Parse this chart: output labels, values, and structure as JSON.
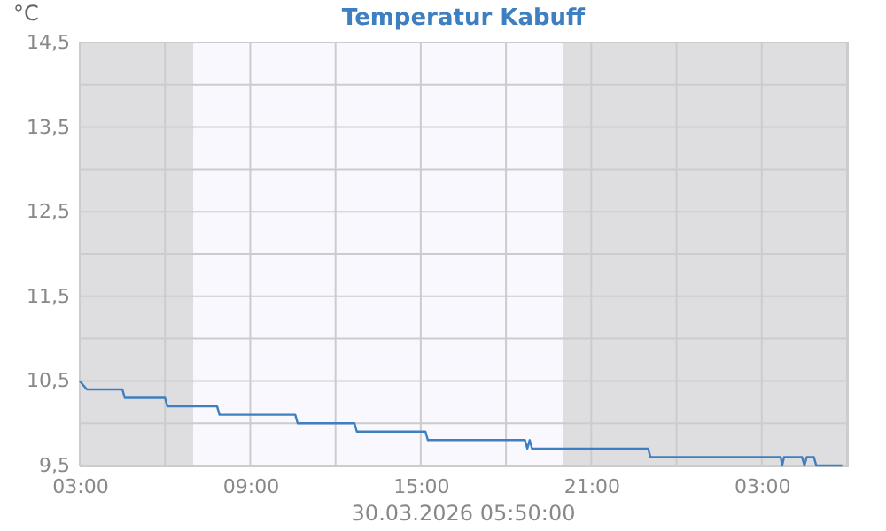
{
  "chart_data": {
    "type": "line",
    "title": "Temperatur Kabuff",
    "ylabel": "°C",
    "annotations": [
      "30.03.2026 05:50:00"
    ],
    "x": [
      "2026-03-29T03:00",
      "2026-03-29T03:15",
      "2026-03-29T04:30",
      "2026-03-29T04:35",
      "2026-03-29T06:00",
      "2026-03-29T06:05",
      "2026-03-29T07:50",
      "2026-03-29T07:55",
      "2026-03-29T10:35",
      "2026-03-29T10:40",
      "2026-03-29T12:40",
      "2026-03-29T12:45",
      "2026-03-29T15:10",
      "2026-03-29T15:15",
      "2026-03-29T18:40",
      "2026-03-29T18:45",
      "2026-03-29T18:50",
      "2026-03-29T18:55",
      "2026-03-29T23:00",
      "2026-03-29T23:05",
      "2026-03-30T03:40",
      "2026-03-30T03:43",
      "2026-03-30T03:47",
      "2026-03-30T04:25",
      "2026-03-30T04:30",
      "2026-03-30T04:35",
      "2026-03-30T04:50",
      "2026-03-30T04:55",
      "2026-03-30T05:50"
    ],
    "series": [
      {
        "color": "#3d7fc0",
        "values": [
          10.5,
          10.4,
          10.4,
          10.3,
          10.3,
          10.2,
          10.2,
          10.1,
          10.1,
          10.0,
          10.0,
          9.9,
          9.9,
          9.8,
          9.8,
          9.7,
          9.8,
          9.7,
          9.7,
          9.6,
          9.6,
          9.5,
          9.6,
          9.6,
          9.5,
          9.6,
          9.6,
          9.5,
          9.5
        ]
      }
    ],
    "xlim": [
      "2026-03-29T03:00",
      "2026-03-30T06:00"
    ],
    "xticks": [
      {
        "value": "2026-03-29T03:00",
        "label": "03:00"
      },
      {
        "value": "2026-03-29T06:00",
        "label": null
      },
      {
        "value": "2026-03-29T09:00",
        "label": "09:00"
      },
      {
        "value": "2026-03-29T12:00",
        "label": null
      },
      {
        "value": "2026-03-29T15:00",
        "label": "15:00"
      },
      {
        "value": "2026-03-29T18:00",
        "label": null
      },
      {
        "value": "2026-03-29T21:00",
        "label": "21:00"
      },
      {
        "value": "2026-03-30T00:00",
        "label": null
      },
      {
        "value": "2026-03-30T03:00",
        "label": "03:00"
      },
      {
        "value": "2026-03-30T06:00",
        "label": null
      }
    ],
    "ylim": [
      9.5,
      14.5
    ],
    "yticks": [
      {
        "value": 9.5,
        "label": "9,5"
      },
      {
        "value": 10,
        "label": null
      },
      {
        "value": 10.5,
        "label": "10,5"
      },
      {
        "value": 11,
        "label": null
      },
      {
        "value": 11.5,
        "label": "11,5"
      },
      {
        "value": 12,
        "label": null
      },
      {
        "value": 12.5,
        "label": "12,5"
      },
      {
        "value": 13,
        "label": null
      },
      {
        "value": 13.5,
        "label": "13,5"
      },
      {
        "value": 14,
        "label": null
      },
      {
        "value": 14.5,
        "label": "14,5"
      }
    ],
    "bands": [
      {
        "axis": "x",
        "from": "2026-03-29T03:00",
        "to": "2026-03-29T07:00",
        "color": "#dedee0"
      },
      {
        "axis": "x",
        "from": "2026-03-29T07:00",
        "to": "2026-03-29T20:00",
        "color": "#faf8ff"
      },
      {
        "axis": "x",
        "from": "2026-03-29T20:00",
        "to": "2026-03-30T06:00",
        "color": "#dedee0"
      }
    ],
    "grid": true,
    "marker": "none",
    "line_style": "solid"
  }
}
